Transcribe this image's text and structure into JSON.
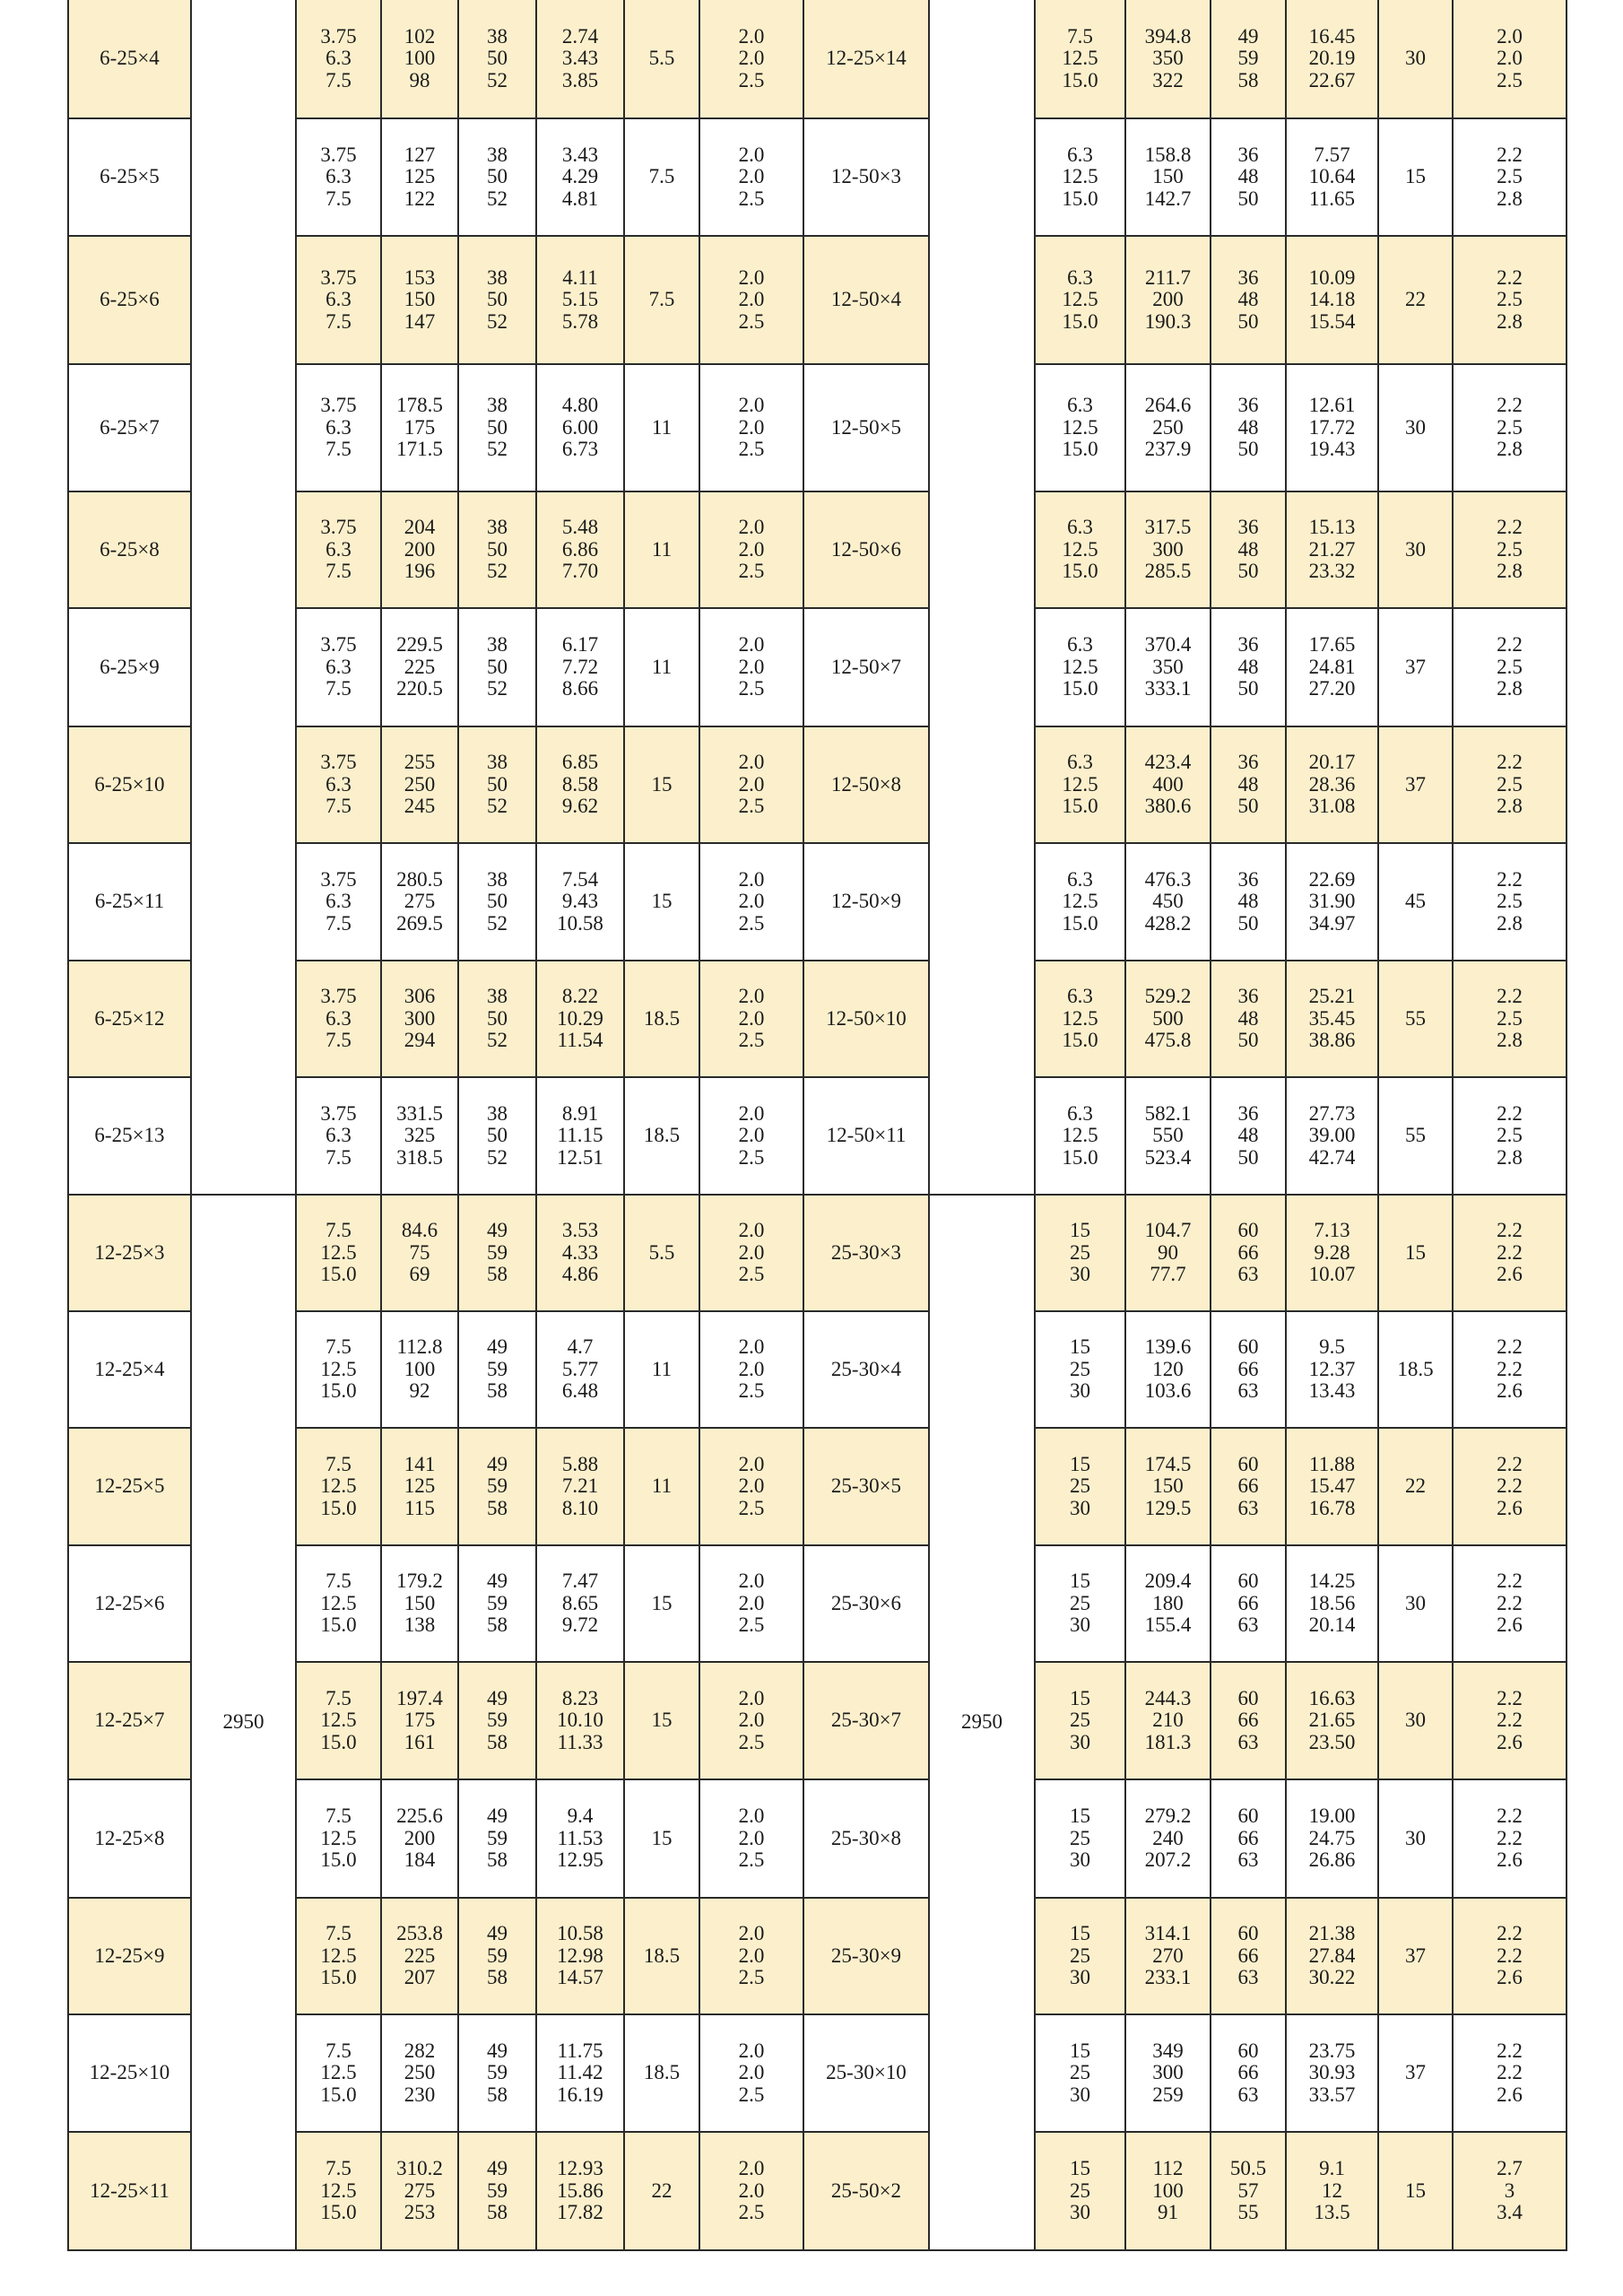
{
  "colors": {
    "row_highlight": "#fcf0cc",
    "row_plain": "#ffffff",
    "grid": "#2a2a2a"
  },
  "speed_lower": "2950",
  "rows": [
    {
      "left": {
        "model": "6-25×4",
        "flow": [
          "3.75",
          "6.3",
          "7.5"
        ],
        "head": [
          "102",
          "100",
          "98"
        ],
        "eff": [
          "38",
          "50",
          "52"
        ],
        "power": [
          "2.74",
          "3.43",
          "3.85"
        ],
        "motor": "5.5",
        "npsh": [
          "2.0",
          "2.0",
          "2.5"
        ]
      },
      "right": {
        "model": "12-25×14",
        "flow": [
          "7.5",
          "12.5",
          "15.0"
        ],
        "head": [
          "394.8",
          "350",
          "322"
        ],
        "eff": [
          "49",
          "59",
          "58"
        ],
        "power": [
          "16.45",
          "20.19",
          "22.67"
        ],
        "motor": "30",
        "npsh": [
          "2.0",
          "2.0",
          "2.5"
        ]
      }
    },
    {
      "left": {
        "model": "6-25×5",
        "flow": [
          "3.75",
          "6.3",
          "7.5"
        ],
        "head": [
          "127",
          "125",
          "122"
        ],
        "eff": [
          "38",
          "50",
          "52"
        ],
        "power": [
          "3.43",
          "4.29",
          "4.81"
        ],
        "motor": "7.5",
        "npsh": [
          "2.0",
          "2.0",
          "2.5"
        ]
      },
      "right": {
        "model": "12-50×3",
        "flow": [
          "6.3",
          "12.5",
          "15.0"
        ],
        "head": [
          "158.8",
          "150",
          "142.7"
        ],
        "eff": [
          "36",
          "48",
          "50"
        ],
        "power": [
          "7.57",
          "10.64",
          "11.65"
        ],
        "motor": "15",
        "npsh": [
          "2.2",
          "2.5",
          "2.8"
        ]
      }
    },
    {
      "left": {
        "model": "6-25×6",
        "flow": [
          "3.75",
          "6.3",
          "7.5"
        ],
        "head": [
          "153",
          "150",
          "147"
        ],
        "eff": [
          "38",
          "50",
          "52"
        ],
        "power": [
          "4.11",
          "5.15",
          "5.78"
        ],
        "motor": "7.5",
        "npsh": [
          "2.0",
          "2.0",
          "2.5"
        ]
      },
      "right": {
        "model": "12-50×4",
        "flow": [
          "6.3",
          "12.5",
          "15.0"
        ],
        "head": [
          "211.7",
          "200",
          "190.3"
        ],
        "eff": [
          "36",
          "48",
          "50"
        ],
        "power": [
          "10.09",
          "14.18",
          "15.54"
        ],
        "motor": "22",
        "npsh": [
          "2.2",
          "2.5",
          "2.8"
        ]
      }
    },
    {
      "left": {
        "model": "6-25×7",
        "flow": [
          "3.75",
          "6.3",
          "7.5"
        ],
        "head": [
          "178.5",
          "175",
          "171.5"
        ],
        "eff": [
          "38",
          "50",
          "52"
        ],
        "power": [
          "4.80",
          "6.00",
          "6.73"
        ],
        "motor": "11",
        "npsh": [
          "2.0",
          "2.0",
          "2.5"
        ]
      },
      "right": {
        "model": "12-50×5",
        "flow": [
          "6.3",
          "12.5",
          "15.0"
        ],
        "head": [
          "264.6",
          "250",
          "237.9"
        ],
        "eff": [
          "36",
          "48",
          "50"
        ],
        "power": [
          "12.61",
          "17.72",
          "19.43"
        ],
        "motor": "30",
        "npsh": [
          "2.2",
          "2.5",
          "2.8"
        ]
      }
    },
    {
      "left": {
        "model": "6-25×8",
        "flow": [
          "3.75",
          "6.3",
          "7.5"
        ],
        "head": [
          "204",
          "200",
          "196"
        ],
        "eff": [
          "38",
          "50",
          "52"
        ],
        "power": [
          "5.48",
          "6.86",
          "7.70"
        ],
        "motor": "11",
        "npsh": [
          "2.0",
          "2.0",
          "2.5"
        ]
      },
      "right": {
        "model": "12-50×6",
        "flow": [
          "6.3",
          "12.5",
          "15.0"
        ],
        "head": [
          "317.5",
          "300",
          "285.5"
        ],
        "eff": [
          "36",
          "48",
          "50"
        ],
        "power": [
          "15.13",
          "21.27",
          "23.32"
        ],
        "motor": "30",
        "npsh": [
          "2.2",
          "2.5",
          "2.8"
        ]
      }
    },
    {
      "left": {
        "model": "6-25×9",
        "flow": [
          "3.75",
          "6.3",
          "7.5"
        ],
        "head": [
          "229.5",
          "225",
          "220.5"
        ],
        "eff": [
          "38",
          "50",
          "52"
        ],
        "power": [
          "6.17",
          "7.72",
          "8.66"
        ],
        "motor": "11",
        "npsh": [
          "2.0",
          "2.0",
          "2.5"
        ]
      },
      "right": {
        "model": "12-50×7",
        "flow": [
          "6.3",
          "12.5",
          "15.0"
        ],
        "head": [
          "370.4",
          "350",
          "333.1"
        ],
        "eff": [
          "36",
          "48",
          "50"
        ],
        "power": [
          "17.65",
          "24.81",
          "27.20"
        ],
        "motor": "37",
        "npsh": [
          "2.2",
          "2.5",
          "2.8"
        ]
      }
    },
    {
      "left": {
        "model": "6-25×10",
        "flow": [
          "3.75",
          "6.3",
          "7.5"
        ],
        "head": [
          "255",
          "250",
          "245"
        ],
        "eff": [
          "38",
          "50",
          "52"
        ],
        "power": [
          "6.85",
          "8.58",
          "9.62"
        ],
        "motor": "15",
        "npsh": [
          "2.0",
          "2.0",
          "2.5"
        ]
      },
      "right": {
        "model": "12-50×8",
        "flow": [
          "6.3",
          "12.5",
          "15.0"
        ],
        "head": [
          "423.4",
          "400",
          "380.6"
        ],
        "eff": [
          "36",
          "48",
          "50"
        ],
        "power": [
          "20.17",
          "28.36",
          "31.08"
        ],
        "motor": "37",
        "npsh": [
          "2.2",
          "2.5",
          "2.8"
        ]
      }
    },
    {
      "left": {
        "model": "6-25×11",
        "flow": [
          "3.75",
          "6.3",
          "7.5"
        ],
        "head": [
          "280.5",
          "275",
          "269.5"
        ],
        "eff": [
          "38",
          "50",
          "52"
        ],
        "power": [
          "7.54",
          "9.43",
          "10.58"
        ],
        "motor": "15",
        "npsh": [
          "2.0",
          "2.0",
          "2.5"
        ]
      },
      "right": {
        "model": "12-50×9",
        "flow": [
          "6.3",
          "12.5",
          "15.0"
        ],
        "head": [
          "476.3",
          "450",
          "428.2"
        ],
        "eff": [
          "36",
          "48",
          "50"
        ],
        "power": [
          "22.69",
          "31.90",
          "34.97"
        ],
        "motor": "45",
        "npsh": [
          "2.2",
          "2.5",
          "2.8"
        ]
      }
    },
    {
      "left": {
        "model": "6-25×12",
        "flow": [
          "3.75",
          "6.3",
          "7.5"
        ],
        "head": [
          "306",
          "300",
          "294"
        ],
        "eff": [
          "38",
          "50",
          "52"
        ],
        "power": [
          "8.22",
          "10.29",
          "11.54"
        ],
        "motor": "18.5",
        "npsh": [
          "2.0",
          "2.0",
          "2.5"
        ]
      },
      "right": {
        "model": "12-50×10",
        "flow": [
          "6.3",
          "12.5",
          "15.0"
        ],
        "head": [
          "529.2",
          "500",
          "475.8"
        ],
        "eff": [
          "36",
          "48",
          "50"
        ],
        "power": [
          "25.21",
          "35.45",
          "38.86"
        ],
        "motor": "55",
        "npsh": [
          "2.2",
          "2.5",
          "2.8"
        ]
      }
    },
    {
      "left": {
        "model": "6-25×13",
        "flow": [
          "3.75",
          "6.3",
          "7.5"
        ],
        "head": [
          "331.5",
          "325",
          "318.5"
        ],
        "eff": [
          "38",
          "50",
          "52"
        ],
        "power": [
          "8.91",
          "11.15",
          "12.51"
        ],
        "motor": "18.5",
        "npsh": [
          "2.0",
          "2.0",
          "2.5"
        ]
      },
      "right": {
        "model": "12-50×11",
        "flow": [
          "6.3",
          "12.5",
          "15.0"
        ],
        "head": [
          "582.1",
          "550",
          "523.4"
        ],
        "eff": [
          "36",
          "48",
          "50"
        ],
        "power": [
          "27.73",
          "39.00",
          "42.74"
        ],
        "motor": "55",
        "npsh": [
          "2.2",
          "2.5",
          "2.8"
        ]
      }
    },
    {
      "left": {
        "model": "12-25×3",
        "flow": [
          "7.5",
          "12.5",
          "15.0"
        ],
        "head": [
          "84.6",
          "75",
          "69"
        ],
        "eff": [
          "49",
          "59",
          "58"
        ],
        "power": [
          "3.53",
          "4.33",
          "4.86"
        ],
        "motor": "5.5",
        "npsh": [
          "2.0",
          "2.0",
          "2.5"
        ]
      },
      "right": {
        "model": "25-30×3",
        "flow": [
          "15",
          "25",
          "30"
        ],
        "head": [
          "104.7",
          "90",
          "77.7"
        ],
        "eff": [
          "60",
          "66",
          "63"
        ],
        "power": [
          "7.13",
          "9.28",
          "10.07"
        ],
        "motor": "15",
        "npsh": [
          "2.2",
          "2.2",
          "2.6"
        ]
      }
    },
    {
      "left": {
        "model": "12-25×4",
        "flow": [
          "7.5",
          "12.5",
          "15.0"
        ],
        "head": [
          "112.8",
          "100",
          "92"
        ],
        "eff": [
          "49",
          "59",
          "58"
        ],
        "power": [
          "4.7",
          "5.77",
          "6.48"
        ],
        "motor": "11",
        "npsh": [
          "2.0",
          "2.0",
          "2.5"
        ]
      },
      "right": {
        "model": "25-30×4",
        "flow": [
          "15",
          "25",
          "30"
        ],
        "head": [
          "139.6",
          "120",
          "103.6"
        ],
        "eff": [
          "60",
          "66",
          "63"
        ],
        "power": [
          "9.5",
          "12.37",
          "13.43"
        ],
        "motor": "18.5",
        "npsh": [
          "2.2",
          "2.2",
          "2.6"
        ]
      }
    },
    {
      "left": {
        "model": "12-25×5",
        "flow": [
          "7.5",
          "12.5",
          "15.0"
        ],
        "head": [
          "141",
          "125",
          "115"
        ],
        "eff": [
          "49",
          "59",
          "58"
        ],
        "power": [
          "5.88",
          "7.21",
          "8.10"
        ],
        "motor": "11",
        "npsh": [
          "2.0",
          "2.0",
          "2.5"
        ]
      },
      "right": {
        "model": "25-30×5",
        "flow": [
          "15",
          "25",
          "30"
        ],
        "head": [
          "174.5",
          "150",
          "129.5"
        ],
        "eff": [
          "60",
          "66",
          "63"
        ],
        "power": [
          "11.88",
          "15.47",
          "16.78"
        ],
        "motor": "22",
        "npsh": [
          "2.2",
          "2.2",
          "2.6"
        ]
      }
    },
    {
      "left": {
        "model": "12-25×6",
        "flow": [
          "7.5",
          "12.5",
          "15.0"
        ],
        "head": [
          "179.2",
          "150",
          "138"
        ],
        "eff": [
          "49",
          "59",
          "58"
        ],
        "power": [
          "7.47",
          "8.65",
          "9.72"
        ],
        "motor": "15",
        "npsh": [
          "2.0",
          "2.0",
          "2.5"
        ]
      },
      "right": {
        "model": "25-30×6",
        "flow": [
          "15",
          "25",
          "30"
        ],
        "head": [
          "209.4",
          "180",
          "155.4"
        ],
        "eff": [
          "60",
          "66",
          "63"
        ],
        "power": [
          "14.25",
          "18.56",
          "20.14"
        ],
        "motor": "30",
        "npsh": [
          "2.2",
          "2.2",
          "2.6"
        ]
      }
    },
    {
      "left": {
        "model": "12-25×7",
        "flow": [
          "7.5",
          "12.5",
          "15.0"
        ],
        "head": [
          "197.4",
          "175",
          "161"
        ],
        "eff": [
          "49",
          "59",
          "58"
        ],
        "power": [
          "8.23",
          "10.10",
          "11.33"
        ],
        "motor": "15",
        "npsh": [
          "2.0",
          "2.0",
          "2.5"
        ]
      },
      "right": {
        "model": "25-30×7",
        "flow": [
          "15",
          "25",
          "30"
        ],
        "head": [
          "244.3",
          "210",
          "181.3"
        ],
        "eff": [
          "60",
          "66",
          "63"
        ],
        "power": [
          "16.63",
          "21.65",
          "23.50"
        ],
        "motor": "30",
        "npsh": [
          "2.2",
          "2.2",
          "2.6"
        ]
      }
    },
    {
      "left": {
        "model": "12-25×8",
        "flow": [
          "7.5",
          "12.5",
          "15.0"
        ],
        "head": [
          "225.6",
          "200",
          "184"
        ],
        "eff": [
          "49",
          "59",
          "58"
        ],
        "power": [
          "9.4",
          "11.53",
          "12.95"
        ],
        "motor": "15",
        "npsh": [
          "2.0",
          "2.0",
          "2.5"
        ]
      },
      "right": {
        "model": "25-30×8",
        "flow": [
          "15",
          "25",
          "30"
        ],
        "head": [
          "279.2",
          "240",
          "207.2"
        ],
        "eff": [
          "60",
          "66",
          "63"
        ],
        "power": [
          "19.00",
          "24.75",
          "26.86"
        ],
        "motor": "30",
        "npsh": [
          "2.2",
          "2.2",
          "2.6"
        ]
      }
    },
    {
      "left": {
        "model": "12-25×9",
        "flow": [
          "7.5",
          "12.5",
          "15.0"
        ],
        "head": [
          "253.8",
          "225",
          "207"
        ],
        "eff": [
          "49",
          "59",
          "58"
        ],
        "power": [
          "10.58",
          "12.98",
          "14.57"
        ],
        "motor": "18.5",
        "npsh": [
          "2.0",
          "2.0",
          "2.5"
        ]
      },
      "right": {
        "model": "25-30×9",
        "flow": [
          "15",
          "25",
          "30"
        ],
        "head": [
          "314.1",
          "270",
          "233.1"
        ],
        "eff": [
          "60",
          "66",
          "63"
        ],
        "power": [
          "21.38",
          "27.84",
          "30.22"
        ],
        "motor": "37",
        "npsh": [
          "2.2",
          "2.2",
          "2.6"
        ]
      }
    },
    {
      "left": {
        "model": "12-25×10",
        "flow": [
          "7.5",
          "12.5",
          "15.0"
        ],
        "head": [
          "282",
          "250",
          "230"
        ],
        "eff": [
          "49",
          "59",
          "58"
        ],
        "power": [
          "11.75",
          "11.42",
          "16.19"
        ],
        "motor": "18.5",
        "npsh": [
          "2.0",
          "2.0",
          "2.5"
        ]
      },
      "right": {
        "model": "25-30×10",
        "flow": [
          "15",
          "25",
          "30"
        ],
        "head": [
          "349",
          "300",
          "259"
        ],
        "eff": [
          "60",
          "66",
          "63"
        ],
        "power": [
          "23.75",
          "30.93",
          "33.57"
        ],
        "motor": "37",
        "npsh": [
          "2.2",
          "2.2",
          "2.6"
        ]
      }
    },
    {
      "left": {
        "model": "12-25×11",
        "flow": [
          "7.5",
          "12.5",
          "15.0"
        ],
        "head": [
          "310.2",
          "275",
          "253"
        ],
        "eff": [
          "49",
          "59",
          "58"
        ],
        "power": [
          "12.93",
          "15.86",
          "17.82"
        ],
        "motor": "22",
        "npsh": [
          "2.0",
          "2.0",
          "2.5"
        ]
      },
      "right": {
        "model": "25-50×2",
        "flow": [
          "15",
          "25",
          "30"
        ],
        "head": [
          "112",
          "100",
          "91"
        ],
        "eff": [
          "50.5",
          "57",
          "55"
        ],
        "power": [
          "9.1",
          "12",
          "13.5"
        ],
        "motor": "15",
        "npsh": [
          "2.7",
          "3",
          "3.4"
        ]
      }
    }
  ]
}
